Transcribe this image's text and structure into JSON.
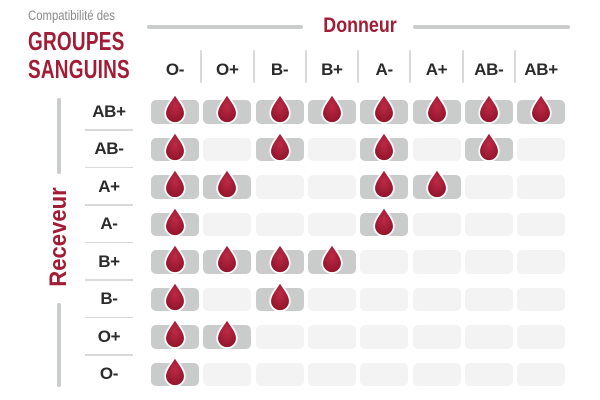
{
  "header": {
    "kicker": "Compatibilité des",
    "title_line1": "GROUPES",
    "title_line2": "SANGUINS"
  },
  "colors": {
    "accent_red": "#A21C35",
    "drop_red": "#A01B33",
    "drop_red_light": "#BC2A45",
    "drop_red_dark": "#8C1128",
    "cell_filled": "#C9CCCB",
    "cell_empty": "#F2F3F2",
    "label_dark": "#2B2B2B",
    "kicker_gray": "#8A8A8A",
    "line_gray": "#C9CCCB",
    "separator_gray": "#D8DAD9"
  },
  "chart_data": {
    "type": "heatmap",
    "title": "Compatibilité des GROUPES SANGUINS",
    "x_axis_label": "Donneur",
    "y_axis_label": "Receveur",
    "donors": [
      "O-",
      "O+",
      "B-",
      "B+",
      "A-",
      "A+",
      "AB-",
      "AB+"
    ],
    "receivers": [
      "AB+",
      "AB-",
      "A+",
      "A-",
      "B+",
      "B-",
      "O+",
      "O-"
    ],
    "cell_marker": "blood-drop-icon",
    "compatibility": [
      [
        1,
        1,
        1,
        1,
        1,
        1,
        1,
        1
      ],
      [
        1,
        0,
        1,
        0,
        1,
        0,
        1,
        0
      ],
      [
        1,
        1,
        0,
        0,
        1,
        1,
        0,
        0
      ],
      [
        1,
        0,
        0,
        0,
        1,
        0,
        0,
        0
      ],
      [
        1,
        1,
        1,
        1,
        0,
        0,
        0,
        0
      ],
      [
        1,
        0,
        1,
        0,
        0,
        0,
        0,
        0
      ],
      [
        1,
        1,
        0,
        0,
        0,
        0,
        0,
        0
      ],
      [
        1,
        0,
        0,
        0,
        0,
        0,
        0,
        0
      ]
    ]
  }
}
